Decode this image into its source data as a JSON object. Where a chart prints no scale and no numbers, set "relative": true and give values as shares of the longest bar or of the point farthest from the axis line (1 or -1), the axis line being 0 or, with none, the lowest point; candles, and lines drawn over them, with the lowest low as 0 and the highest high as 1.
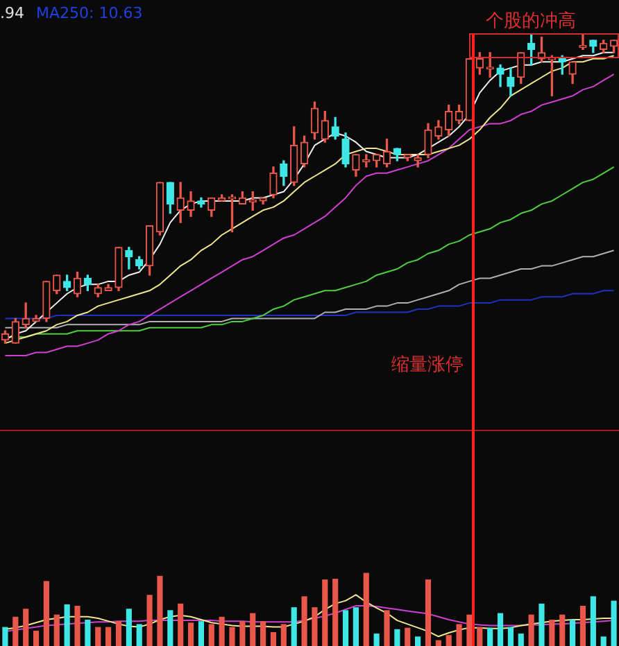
{
  "chart_data": [
    {
      "type": "candlestick",
      "relative": true,
      "categories": [
        null,
        null,
        null,
        null,
        null,
        null,
        null,
        null,
        null,
        null,
        null,
        null,
        null,
        null,
        null,
        null,
        null,
        null,
        null,
        null,
        null,
        null,
        null,
        null,
        null,
        null,
        null,
        null,
        null,
        null,
        null,
        null,
        null,
        null,
        null,
        null,
        null,
        null,
        null,
        null,
        null,
        null,
        null,
        null,
        null,
        null,
        null,
        null,
        null,
        null,
        null,
        null,
        null,
        null,
        null,
        null,
        null,
        null,
        null,
        null
      ],
      "ohlc": [
        [
          0.01,
          0.04,
          0,
          0.03
        ],
        [
          0,
          0.08,
          0,
          0.07
        ],
        [
          0.06,
          0.13,
          0.05,
          0.08
        ],
        [
          0.07,
          0.09,
          0.07,
          0.08
        ],
        [
          0.08,
          0.2,
          0.07,
          0.2
        ],
        [
          0.17,
          0.22,
          0.16,
          0.22
        ],
        [
          0.2,
          0.22,
          0.17,
          0.18
        ],
        [
          0.16,
          0.23,
          0.15,
          0.21
        ],
        [
          0.21,
          0.22,
          0.17,
          0.19
        ],
        [
          0.16,
          0.19,
          0.15,
          0.18
        ],
        [
          0.17,
          0.19,
          0.17,
          0.18
        ],
        [
          0.18,
          0.31,
          0.17,
          0.31
        ],
        [
          0.3,
          0.31,
          0.24,
          0.28
        ],
        [
          0.27,
          0.28,
          0.24,
          0.25
        ],
        [
          0.25,
          0.38,
          0.22,
          0.38
        ],
        [
          0.36,
          0.52,
          0.35,
          0.52
        ],
        [
          0.52,
          0.52,
          0.42,
          0.45
        ],
        [
          0.43,
          0.52,
          0.39,
          0.47
        ],
        [
          0.43,
          0.49,
          0.41,
          0.46
        ],
        [
          0.46,
          0.47,
          0.44,
          0.45
        ],
        [
          0.43,
          0.47,
          0.41,
          0.47
        ],
        [
          0.46,
          0.48,
          0.46,
          0.47
        ],
        [
          0.47,
          0.48,
          0.36,
          0.47
        ],
        [
          0.45,
          0.49,
          0.45,
          0.47
        ],
        [
          0.46,
          0.49,
          0.43,
          0.46
        ],
        [
          0.46,
          0.47,
          0.45,
          0.47
        ],
        [
          0.48,
          0.57,
          0.47,
          0.55
        ],
        [
          0.58,
          0.59,
          0.51,
          0.54
        ],
        [
          0.52,
          0.7,
          0.51,
          0.64
        ],
        [
          0.58,
          0.67,
          0.57,
          0.65
        ],
        [
          0.68,
          0.78,
          0.66,
          0.76
        ],
        [
          0.66,
          0.75,
          0.65,
          0.72
        ],
        [
          0.7,
          0.73,
          0.66,
          0.67
        ],
        [
          0.66,
          0.68,
          0.57,
          0.58
        ],
        [
          0.56,
          0.61,
          0.54,
          0.61
        ],
        [
          0.59,
          0.61,
          0.57,
          0.59
        ],
        [
          0.59,
          0.61,
          0.57,
          0.61
        ],
        [
          0.58,
          0.66,
          0.57,
          0.62
        ],
        [
          0.63,
          0.63,
          0.59,
          0.61
        ],
        [
          0.6,
          0.61,
          0.59,
          0.61
        ],
        [
          0.59,
          0.61,
          0.57,
          0.6
        ],
        [
          0.61,
          0.71,
          0.6,
          0.69
        ],
        [
          0.67,
          0.72,
          0.66,
          0.7
        ],
        [
          0.69,
          0.77,
          0.67,
          0.75
        ],
        [
          0.72,
          0.77,
          0.71,
          0.75
        ],
        [
          0.72,
          0.92,
          0.72,
          0.92
        ],
        [
          0.89,
          0.94,
          0.87,
          0.92
        ],
        [
          0.89,
          0.94,
          0.86,
          0.89
        ],
        [
          0.89,
          0.9,
          0.83,
          0.87
        ],
        [
          0.86,
          0.89,
          0.8,
          0.83
        ],
        [
          0.86,
          0.94,
          0.84,
          0.94
        ],
        [
          0.97,
          1,
          0.9,
          0.95
        ],
        [
          0.92,
          0.99,
          0.91,
          0.94
        ],
        [
          0.92,
          0.93,
          0.8,
          0.92
        ],
        [
          0.92,
          0.93,
          0.87,
          0.91
        ],
        [
          0.87,
          0.91,
          0.84,
          0.91
        ],
        [
          0.96,
          1,
          0.95,
          0.96
        ],
        [
          0.98,
          0.98,
          0.94,
          0.96
        ],
        [
          0.95,
          0.98,
          0.94,
          0.97
        ],
        [
          0.96,
          0.98,
          0.94,
          0.98
        ]
      ],
      "series": [
        {
          "type": "line",
          "color": "#f0f0f0",
          "values": [
            0.01,
            0.03,
            0.04,
            0.07,
            0.1,
            0.13,
            0.16,
            0.18,
            0.19,
            0.19,
            0.2,
            0.2,
            0.22,
            0.23,
            0.27,
            0.32,
            0.39,
            0.43,
            0.45,
            0.46,
            0.46,
            0.46,
            0.46,
            0.46,
            0.47,
            0.47,
            0.48,
            0.49,
            0.53,
            0.58,
            0.64,
            0.66,
            0.68,
            0.67,
            0.65,
            0.62,
            0.61,
            0.6,
            0.6,
            0.6,
            0.61,
            0.63,
            0.65,
            0.67,
            0.7,
            0.74,
            0.81,
            0.85,
            0.88,
            0.89,
            0.9,
            0.9,
            0.91,
            0.91,
            0.91,
            0.92,
            0.93,
            0.93,
            0.94,
            0.94
          ]
        },
        {
          "type": "line",
          "color": "#f0e68c",
          "values": [
            0,
            0.01,
            0.02,
            0.03,
            0.04,
            0.06,
            0.07,
            0.09,
            0.1,
            0.12,
            0.13,
            0.14,
            0.15,
            0.16,
            0.17,
            0.19,
            0.22,
            0.25,
            0.27,
            0.3,
            0.32,
            0.35,
            0.37,
            0.39,
            0.41,
            0.43,
            0.44,
            0.46,
            0.49,
            0.52,
            0.54,
            0.56,
            0.58,
            0.61,
            0.62,
            0.63,
            0.63,
            0.62,
            0.61,
            0.61,
            0.61,
            0.61,
            0.62,
            0.63,
            0.64,
            0.66,
            0.69,
            0.73,
            0.76,
            0.8,
            0.82,
            0.84,
            0.86,
            0.88,
            0.89,
            0.91,
            0.91,
            0.92,
            0.92,
            0.93
          ]
        },
        {
          "type": "line",
          "color": "#d040d0",
          "values": [
            -0.04,
            -0.04,
            -0.04,
            -0.03,
            -0.03,
            -0.02,
            -0.01,
            -0.01,
            0,
            0.01,
            0.03,
            0.04,
            0.06,
            0.07,
            0.09,
            0.11,
            0.13,
            0.15,
            0.17,
            0.19,
            0.21,
            0.23,
            0.25,
            0.27,
            0.28,
            0.3,
            0.32,
            0.34,
            0.35,
            0.37,
            0.39,
            0.41,
            0.44,
            0.47,
            0.51,
            0.54,
            0.55,
            0.55,
            0.56,
            0.57,
            0.58,
            0.59,
            0.61,
            0.63,
            0.66,
            0.69,
            0.7,
            0.71,
            0.71,
            0.72,
            0.74,
            0.75,
            0.77,
            0.78,
            0.79,
            0.8,
            0.82,
            0.83,
            0.85,
            0.87
          ]
        },
        {
          "type": "line",
          "color": "#50d040",
          "values": [
            0.02,
            0.02,
            0.02,
            0.03,
            0.03,
            0.03,
            0.03,
            0.04,
            0.04,
            0.04,
            0.04,
            0.04,
            0.04,
            0.04,
            0.05,
            0.05,
            0.05,
            0.05,
            0.05,
            0.05,
            0.06,
            0.06,
            0.07,
            0.07,
            0.08,
            0.09,
            0.11,
            0.12,
            0.14,
            0.15,
            0.16,
            0.17,
            0.17,
            0.18,
            0.19,
            0.2,
            0.22,
            0.23,
            0.24,
            0.26,
            0.27,
            0.29,
            0.3,
            0.32,
            0.33,
            0.35,
            0.36,
            0.37,
            0.39,
            0.4,
            0.42,
            0.43,
            0.45,
            0.46,
            0.48,
            0.5,
            0.52,
            0.53,
            0.55,
            0.57
          ]
        },
        {
          "type": "line",
          "color": "#b0b0b0",
          "values": [
            0.05,
            0.05,
            0.05,
            0.05,
            0.05,
            0.05,
            0.06,
            0.06,
            0.06,
            0.06,
            0.06,
            0.06,
            0.06,
            0.06,
            0.07,
            0.07,
            0.07,
            0.07,
            0.07,
            0.07,
            0.07,
            0.07,
            0.08,
            0.08,
            0.08,
            0.08,
            0.08,
            0.08,
            0.08,
            0.08,
            0.08,
            0.1,
            0.1,
            0.11,
            0.11,
            0.11,
            0.12,
            0.12,
            0.13,
            0.13,
            0.14,
            0.15,
            0.16,
            0.17,
            0.19,
            0.2,
            0.21,
            0.21,
            0.22,
            0.23,
            0.24,
            0.24,
            0.25,
            0.25,
            0.26,
            0.27,
            0.28,
            0.28,
            0.29,
            0.3
          ]
        },
        {
          "type": "line",
          "color": "#2030c0",
          "values": [
            0.08,
            0.08,
            0.08,
            0.08,
            0.08,
            0.09,
            0.09,
            0.09,
            0.09,
            0.09,
            0.09,
            0.09,
            0.09,
            0.09,
            0.09,
            0.09,
            0.09,
            0.09,
            0.09,
            0.09,
            0.09,
            0.09,
            0.09,
            0.09,
            0.09,
            0.09,
            0.09,
            0.09,
            0.09,
            0.09,
            0.09,
            0.09,
            0.09,
            0.09,
            0.1,
            0.1,
            0.1,
            0.1,
            0.1,
            0.1,
            0.11,
            0.11,
            0.12,
            0.12,
            0.12,
            0.13,
            0.13,
            0.13,
            0.14,
            0.14,
            0.14,
            0.14,
            0.15,
            0.15,
            0.15,
            0.16,
            0.16,
            0.16,
            0.17,
            0.17
          ]
        }
      ],
      "annotations": [
        ".94",
        "MA250: 10.63",
        "个股的冲高",
        "缩量涨停"
      ]
    },
    {
      "type": "bar",
      "relative": true,
      "categories": [
        null,
        null,
        null,
        null,
        null,
        null,
        null,
        null,
        null,
        null,
        null,
        null,
        null,
        null,
        null,
        null,
        null,
        null,
        null,
        null,
        null,
        null,
        null,
        null,
        null,
        null,
        null,
        null,
        null,
        null,
        null,
        null,
        null,
        null,
        null,
        null,
        null,
        null,
        null,
        null,
        null,
        null,
        null,
        null,
        null,
        null,
        null,
        null,
        null,
        null,
        null,
        null,
        null,
        null,
        null,
        null,
        null,
        null,
        null,
        null
      ],
      "values": [
        0.26,
        0.4,
        0.51,
        0.21,
        0.89,
        0.43,
        0.57,
        0.55,
        0.36,
        0.26,
        0.26,
        0.34,
        0.51,
        0.3,
        0.7,
        0.96,
        0.49,
        0.58,
        0.32,
        0.34,
        0.3,
        0.4,
        0.26,
        0.34,
        0.45,
        0.34,
        0.19,
        0.3,
        0.53,
        0.68,
        0.53,
        0.91,
        0.92,
        0.49,
        0.53,
        1,
        0.17,
        0.49,
        0.23,
        0.25,
        0.13,
        0.91,
        0.08,
        0.15,
        0.3,
        0.43,
        0.26,
        0.25,
        0.45,
        0.26,
        0.17,
        0.43,
        0.58,
        0.36,
        0.43,
        0.36,
        0.55,
        0.68,
        0.13,
        0.62
      ],
      "colors": [
        "#3fe6e6",
        "#e8574a",
        "#e8574a",
        "#e8574a",
        "#e8574a",
        "#e8574a",
        "#3fe6e6",
        "#e8574a",
        "#3fe6e6",
        "#e8574a",
        "#e8574a",
        "#e8574a",
        "#3fe6e6",
        "#3fe6e6",
        "#e8574a",
        "#e8574a",
        "#3fe6e6",
        "#e8574a",
        "#e8574a",
        "#3fe6e6",
        "#e8574a",
        "#e8574a",
        "#e8574a",
        "#e8574a",
        "#e8574a",
        "#e8574a",
        "#e8574a",
        "#e8574a",
        "#3fe6e6",
        "#e8574a",
        "#e8574a",
        "#e8574a",
        "#e8574a",
        "#3fe6e6",
        "#3fe6e6",
        "#e8574a",
        "#3fe6e6",
        "#e8574a",
        "#3fe6e6",
        "#e8574a",
        "#3fe6e6",
        "#e8574a",
        "#e8574a",
        "#e8574a",
        "#e8574a",
        "#e8574a",
        "#e8574a",
        "#3fe6e6",
        "#3fe6e6",
        "#3fe6e6",
        "#3fe6e6",
        "#e8574a",
        "#3fe6e6",
        "#e8574a",
        "#e8574a",
        "#3fe6e6",
        "#e8574a",
        "#3fe6e6",
        "#3fe6e6",
        "#3fe6e6"
      ],
      "series": [
        {
          "type": "line",
          "color": "#f0e68c",
          "values": [
            0.23,
            0.25,
            0.28,
            0.32,
            0.36,
            0.38,
            0.4,
            0.4,
            0.4,
            0.38,
            0.34,
            0.3,
            0.27,
            0.26,
            0.3,
            0.36,
            0.4,
            0.42,
            0.4,
            0.36,
            0.32,
            0.3,
            0.28,
            0.27,
            0.27,
            0.27,
            0.26,
            0.26,
            0.3,
            0.34,
            0.4,
            0.5,
            0.58,
            0.62,
            0.7,
            0.6,
            0.52,
            0.45,
            0.35,
            0.3,
            0.25,
            0.2,
            0.13,
            0.18,
            0.22,
            0.25,
            0.25,
            0.24,
            0.24,
            0.25,
            0.28,
            0.3,
            0.32,
            0.34,
            0.35,
            0.36,
            0.36,
            0.37,
            0.38,
            0.38
          ]
        },
        {
          "type": "line",
          "color": "#d040d0",
          "values": [
            0.2,
            0.22,
            0.24,
            0.26,
            0.28,
            0.29,
            0.3,
            0.31,
            0.32,
            0.33,
            0.33,
            0.34,
            0.34,
            0.34,
            0.35,
            0.35,
            0.35,
            0.35,
            0.35,
            0.35,
            0.35,
            0.34,
            0.34,
            0.34,
            0.33,
            0.33,
            0.33,
            0.33,
            0.33,
            0.35,
            0.38,
            0.41,
            0.45,
            0.5,
            0.55,
            0.55,
            0.54,
            0.52,
            0.5,
            0.48,
            0.46,
            0.44,
            0.4,
            0.36,
            0.33,
            0.3,
            0.29,
            0.28,
            0.28,
            0.28,
            0.28,
            0.29,
            0.29,
            0.3,
            0.3,
            0.31,
            0.32,
            0.33,
            0.34,
            0.35
          ]
        }
      ]
    }
  ]
}
